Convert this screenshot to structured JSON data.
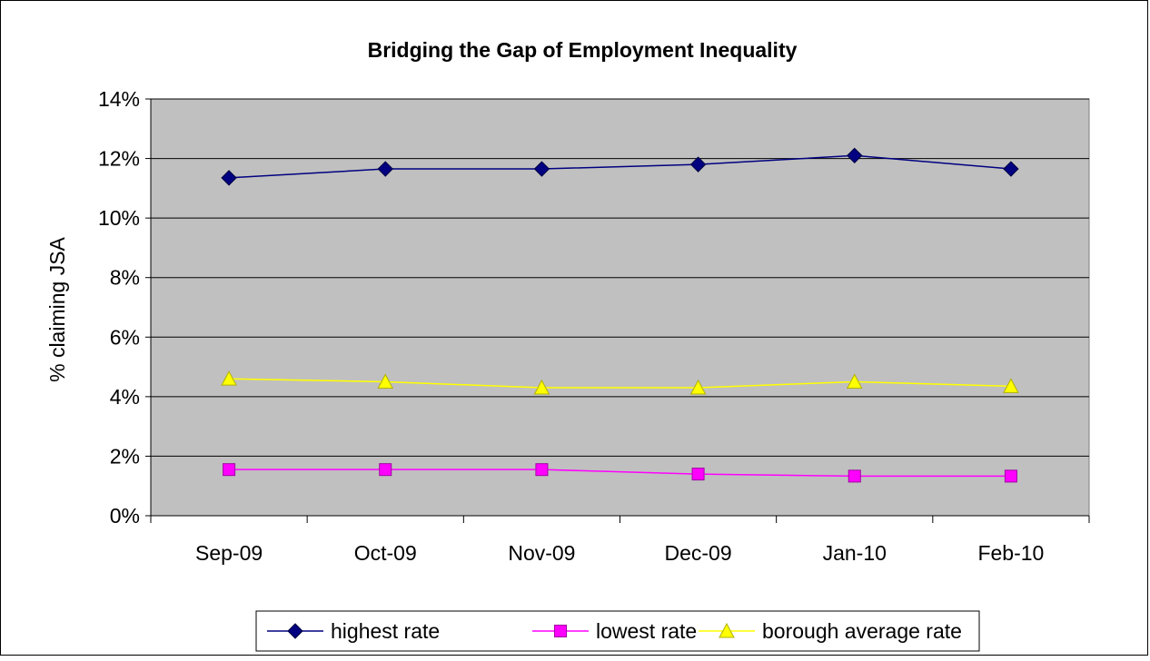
{
  "chart_data": {
    "type": "line",
    "title": "Bridging the Gap of Employment Inequality",
    "xlabel": "",
    "ylabel": "% claiming JSA",
    "categories": [
      "Sep-09",
      "Oct-09",
      "Nov-09",
      "Dec-09",
      "Jan-10",
      "Feb-10"
    ],
    "ylim": [
      0,
      0.14
    ],
    "y_ticks": [
      0,
      0.02,
      0.04,
      0.06,
      0.08,
      0.1,
      0.12,
      0.14
    ],
    "y_tick_labels": [
      "0%",
      "2%",
      "4%",
      "6%",
      "8%",
      "10%",
      "12%",
      "14%"
    ],
    "grid": true,
    "legend_position": "bottom",
    "plot_background": "#c0c0c0",
    "series": [
      {
        "name": "highest rate",
        "color": "#000080",
        "marker": "diamond",
        "values": [
          0.1135,
          0.1165,
          0.1165,
          0.118,
          0.121,
          0.1165
        ]
      },
      {
        "name": "lowest rate",
        "color": "#ff00ff",
        "marker": "square",
        "values": [
          0.0155,
          0.0155,
          0.0155,
          0.014,
          0.0133,
          0.0133
        ]
      },
      {
        "name": "borough average rate",
        "color": "#ffff00",
        "marker": "triangle",
        "values": [
          0.046,
          0.045,
          0.043,
          0.043,
          0.045,
          0.0435
        ]
      }
    ]
  }
}
